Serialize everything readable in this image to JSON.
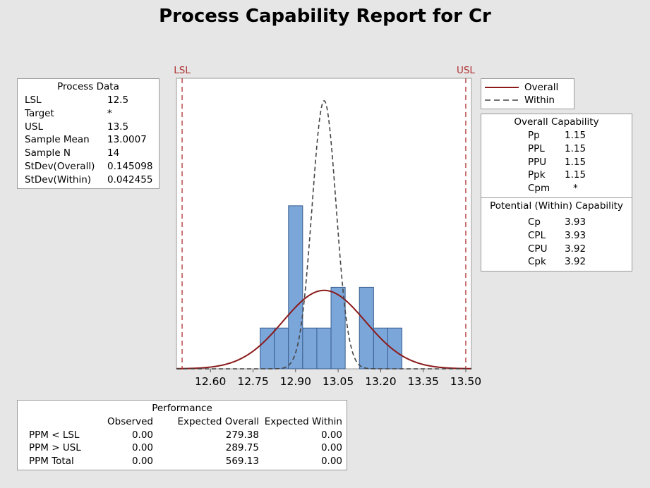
{
  "title": "Process Capability Report for Cr",
  "process_data": {
    "header": "Process Data",
    "rows": [
      {
        "label": "LSL",
        "value": "12.5"
      },
      {
        "label": "Target",
        "value": "*"
      },
      {
        "label": "USL",
        "value": "13.5"
      },
      {
        "label": "Sample Mean",
        "value": "13.0007"
      },
      {
        "label": "Sample N",
        "value": "14"
      },
      {
        "label": "StDev(Overall)",
        "value": "0.145098"
      },
      {
        "label": "StDev(Within)",
        "value": "0.042455"
      }
    ]
  },
  "legend": {
    "overall_label": "Overall",
    "within_label": "Within",
    "overall_color": "#8b1a1a",
    "within_color": "#444444"
  },
  "overall_capability": {
    "header": "Overall Capability",
    "rows": [
      {
        "label": "Pp",
        "value": "1.15"
      },
      {
        "label": "PPL",
        "value": "1.15"
      },
      {
        "label": "PPU",
        "value": "1.15"
      },
      {
        "label": "Ppk",
        "value": "1.15"
      },
      {
        "label": "Cpm",
        "value": "*"
      }
    ]
  },
  "within_capability": {
    "header": "Potential (Within) Capability",
    "rows": [
      {
        "label": "Cp",
        "value": "3.93"
      },
      {
        "label": "CPL",
        "value": "3.93"
      },
      {
        "label": "CPU",
        "value": "3.92"
      },
      {
        "label": "Cpk",
        "value": "3.92"
      }
    ]
  },
  "performance": {
    "header": "Performance",
    "columns": [
      "",
      "Observed",
      "Expected Overall",
      "Expected Within"
    ],
    "rows": [
      {
        "label": "PPM < LSL",
        "observed": "0.00",
        "expected_overall": "279.38",
        "expected_within": "0.00"
      },
      {
        "label": "PPM > USL",
        "observed": "0.00",
        "expected_overall": "289.75",
        "expected_within": "0.00"
      },
      {
        "label": "PPM Total",
        "observed": "0.00",
        "expected_overall": "569.13",
        "expected_within": "0.00"
      }
    ]
  },
  "chart_data": {
    "type": "bar",
    "bar_color": "#7ba6d9",
    "spec_line_color": "#b03030",
    "bin_width": 0.05,
    "bins": [
      {
        "start": 12.775,
        "end": 12.825,
        "count": 1
      },
      {
        "start": 12.825,
        "end": 12.875,
        "count": 1
      },
      {
        "start": 12.875,
        "end": 12.925,
        "count": 4
      },
      {
        "start": 12.925,
        "end": 12.975,
        "count": 1
      },
      {
        "start": 12.975,
        "end": 13.025,
        "count": 1
      },
      {
        "start": 13.025,
        "end": 13.075,
        "count": 2
      },
      {
        "start": 13.075,
        "end": 13.125,
        "count": 0
      },
      {
        "start": 13.125,
        "end": 13.175,
        "count": 2
      },
      {
        "start": 13.175,
        "end": 13.225,
        "count": 1
      },
      {
        "start": 13.225,
        "end": 13.275,
        "count": 1
      }
    ],
    "xlim": [
      12.48,
      13.52
    ],
    "x_ticks": [
      12.6,
      12.75,
      12.9,
      13.05,
      13.2,
      13.35,
      13.5
    ],
    "x_tick_labels": [
      "12.60",
      "12.75",
      "12.90",
      "13.05",
      "13.20",
      "13.35",
      "13.50"
    ],
    "spec_limits": [
      {
        "name": "LSL",
        "value": 12.5
      },
      {
        "name": "USL",
        "value": 13.5
      }
    ],
    "mean": 13.0007,
    "stdev_overall": 0.145098,
    "stdev_within": 0.042455,
    "n": 14
  }
}
